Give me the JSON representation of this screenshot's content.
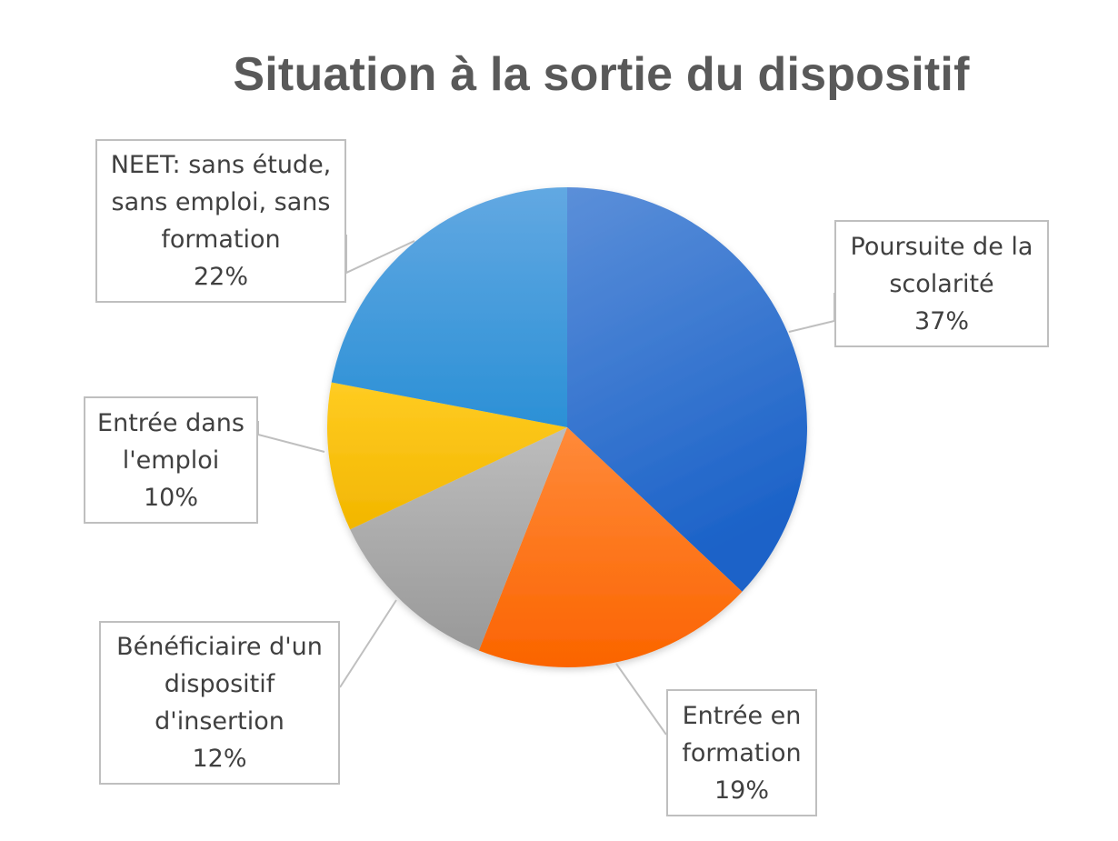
{
  "chart_data": {
    "type": "pie",
    "title": "Situation à la sortie du dispositif",
    "slices": [
      {
        "label_lines": [
          "Poursuite de la",
          "scolarité"
        ],
        "value": 37,
        "percent_label": "37%",
        "color": "#2e6fd6"
      },
      {
        "label_lines": [
          "Entrée en",
          "formation"
        ],
        "value": 19,
        "percent_label": "19%",
        "color": "#ff7010"
      },
      {
        "label_lines": [
          "Bénéficiaire d'un",
          "dispositif",
          "d'insertion"
        ],
        "value": 12,
        "percent_label": "12%",
        "color": "#a6a6a6"
      },
      {
        "label_lines": [
          "Entrée dans",
          "l'emploi"
        ],
        "value": 10,
        "percent_label": "10%",
        "color": "#ffc000"
      },
      {
        "label_lines": [
          "NEET: sans étude,",
          "sans emploi, sans",
          "formation"
        ],
        "value": 22,
        "percent_label": "22%",
        "color": "#3a9de0"
      }
    ],
    "legend": "none",
    "data_labels": "callouts"
  }
}
